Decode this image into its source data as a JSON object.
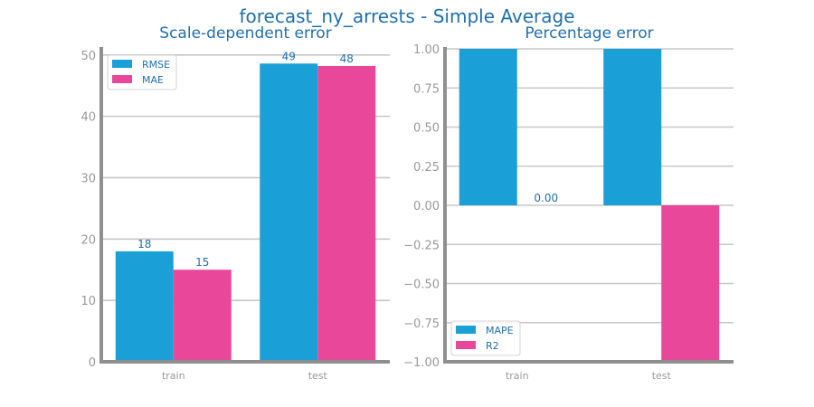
{
  "chart_data": {
    "suptitle": "forecast_ny_arrests - Simple Average",
    "colors": {
      "series1": "#1a9fd6",
      "series2": "#e8479a",
      "axis": "#8f8f8f",
      "grid": "#c8c8c8",
      "text": "#1f6fb0",
      "tick": "#9a9a9a"
    },
    "panels": [
      {
        "type": "bar",
        "title": "Scale-dependent error",
        "categories": [
          "train",
          "test"
        ],
        "series": [
          {
            "name": "RMSE",
            "values": [
              18,
              48.6
            ],
            "labels": [
              "18",
              "49"
            ]
          },
          {
            "name": "MAE",
            "values": [
              15,
              48.2
            ],
            "labels": [
              "15",
              "48"
            ]
          }
        ],
        "ylim": [
          0,
          51
        ],
        "yticks": [
          0,
          10,
          20,
          30,
          40,
          50
        ],
        "ytick_labels": [
          "0",
          "10",
          "20",
          "30",
          "40",
          "50"
        ],
        "grid": true,
        "legend_position": "top-left"
      },
      {
        "type": "bar",
        "title": "Percentage error",
        "categories": [
          "train",
          "test"
        ],
        "series": [
          {
            "name": "MAPE",
            "values": [
              1.0,
              1.0
            ],
            "labels": [
              "",
              ""
            ]
          },
          {
            "name": "R2",
            "values": [
              0.0,
              -1.0
            ],
            "labels": [
              "0.00",
              ""
            ]
          }
        ],
        "ylim": [
          -1.0,
          1.0
        ],
        "yticks": [
          -1.0,
          -0.75,
          -0.5,
          -0.25,
          0.0,
          0.25,
          0.5,
          0.75,
          1.0
        ],
        "ytick_labels": [
          "−1.00",
          "−0.75",
          "−0.50",
          "−0.25",
          "0.00",
          "0.25",
          "0.50",
          "0.75",
          "1.00"
        ],
        "grid": true,
        "legend_position": "bottom-left"
      }
    ]
  }
}
